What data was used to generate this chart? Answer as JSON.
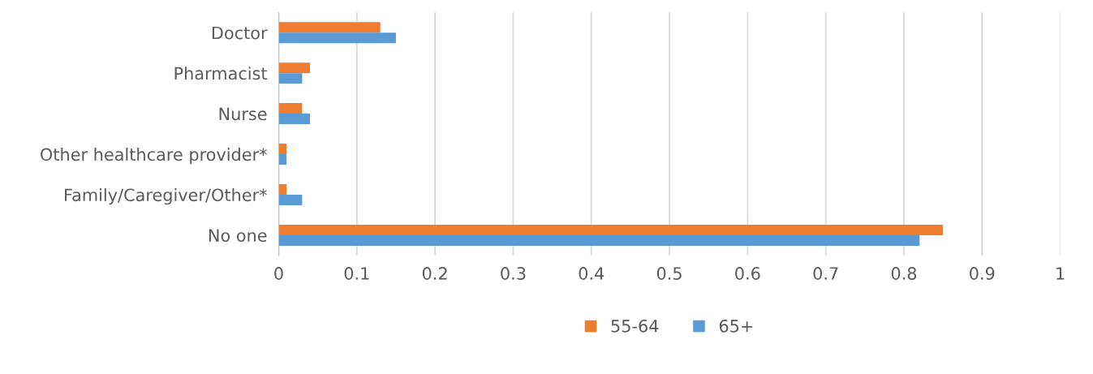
{
  "chart_data": {
    "type": "bar",
    "orientation": "horizontal",
    "categories": [
      "Doctor",
      "Pharmacist",
      "Nurse",
      "Other healthcare provider*",
      "Family/Caregiver/Other*",
      "No one"
    ],
    "series": [
      {
        "name": "55-64",
        "color": "#ed7d31",
        "values": [
          0.13,
          0.04,
          0.03,
          0.01,
          0.01,
          0.85
        ]
      },
      {
        "name": "65+",
        "color": "#5b9bd5",
        "values": [
          0.15,
          0.03,
          0.04,
          0.01,
          0.03,
          0.82
        ]
      }
    ],
    "xlim": [
      0,
      1
    ],
    "xticks": [
      0,
      0.1,
      0.2,
      0.3,
      0.4,
      0.5,
      0.6,
      0.7,
      0.8,
      0.9,
      1
    ],
    "grid": "x",
    "legend": "bottom"
  }
}
